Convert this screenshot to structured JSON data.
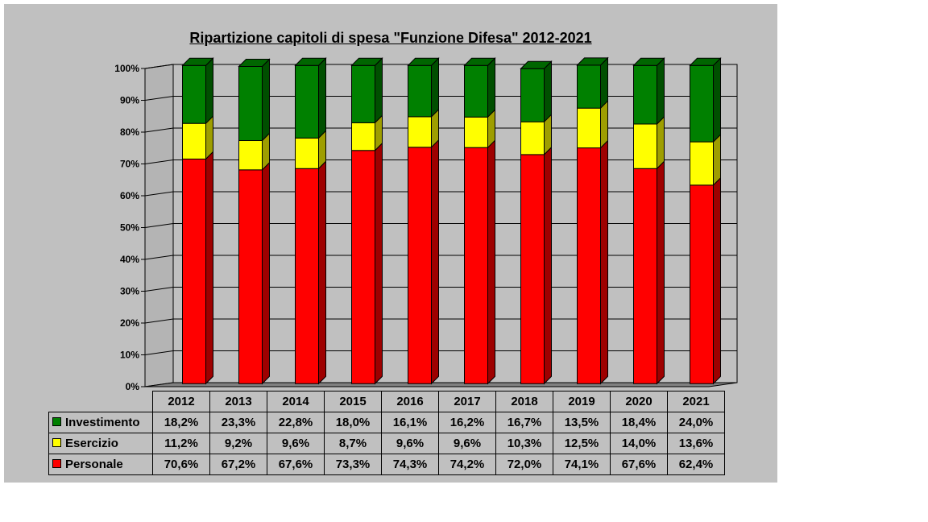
{
  "chart_data": {
    "type": "bar",
    "stacked": true,
    "percent_stacked": true,
    "three_d": true,
    "title": "Ripartizione capitoli di spesa \"Funzione Difesa\" 2012-2021",
    "categories": [
      "2012",
      "2013",
      "2014",
      "2015",
      "2016",
      "2017",
      "2018",
      "2019",
      "2020",
      "2021"
    ],
    "series": [
      {
        "name": "Personale",
        "color": "#ff0000",
        "values": [
          70.6,
          67.2,
          67.6,
          73.3,
          74.3,
          74.2,
          72.0,
          74.1,
          67.6,
          62.4
        ],
        "labels": [
          "70,6%",
          "67,2%",
          "67,6%",
          "73,3%",
          "74,3%",
          "74,2%",
          "72,0%",
          "74,1%",
          "67,6%",
          "62,4%"
        ]
      },
      {
        "name": "Esercizio",
        "color": "#ffff00",
        "values": [
          11.2,
          9.2,
          9.6,
          8.7,
          9.6,
          9.6,
          10.3,
          12.5,
          14.0,
          13.6
        ],
        "labels": [
          "11,2%",
          "9,2%",
          "9,6%",
          "8,7%",
          "9,6%",
          "9,6%",
          "10,3%",
          "12,5%",
          "14,0%",
          "13,6%"
        ]
      },
      {
        "name": "Investimento",
        "color": "#008000",
        "values": [
          18.2,
          23.3,
          22.8,
          18.0,
          16.1,
          16.2,
          16.7,
          13.5,
          18.4,
          24.0
        ],
        "labels": [
          "18,2%",
          "23,3%",
          "22,8%",
          "18,0%",
          "16,1%",
          "16,2%",
          "16,7%",
          "13,5%",
          "18,4%",
          "24,0%"
        ]
      }
    ],
    "table_row_order": [
      "Investimento",
      "Esercizio",
      "Personale"
    ],
    "yticks": [
      "0%",
      "10%",
      "20%",
      "30%",
      "40%",
      "50%",
      "60%",
      "70%",
      "80%",
      "90%",
      "100%"
    ],
    "ylim": [
      0,
      100
    ],
    "grid": true,
    "legend": "data-table"
  }
}
